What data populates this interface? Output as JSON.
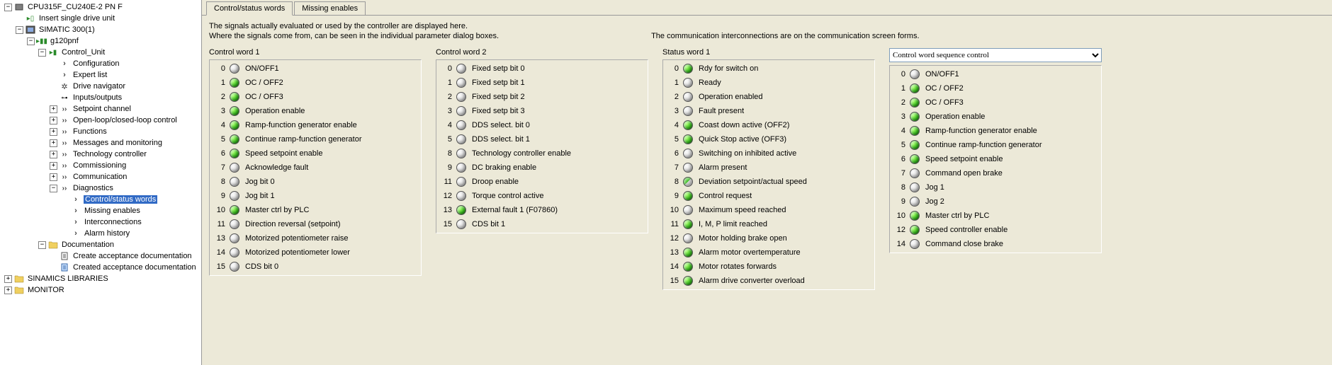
{
  "tree": [
    {
      "indent": 0,
      "exp": "-",
      "icon": "cpu",
      "label": "CPU315F_CU240E-2 PN F",
      "sel": false
    },
    {
      "indent": 1,
      "exp": "none",
      "icon": "insert",
      "label": "Insert single drive unit",
      "sel": false
    },
    {
      "indent": 1,
      "exp": "-",
      "icon": "device",
      "label": "SIMATIC 300(1)",
      "sel": false
    },
    {
      "indent": 2,
      "exp": "-",
      "icon": "drive",
      "label": "g120pnf",
      "sel": false
    },
    {
      "indent": 3,
      "exp": "-",
      "icon": "ctrl",
      "label": "Control_Unit",
      "sel": false
    },
    {
      "indent": 4,
      "exp": "none",
      "icon": "chev",
      "label": "Configuration",
      "sel": false
    },
    {
      "indent": 4,
      "exp": "none",
      "icon": "chev",
      "label": "Expert list",
      "sel": false
    },
    {
      "indent": 4,
      "exp": "none",
      "icon": "gear",
      "label": "Drive navigator",
      "sel": false
    },
    {
      "indent": 4,
      "exp": "none",
      "icon": "io",
      "label": "Inputs/outputs",
      "sel": false
    },
    {
      "indent": 4,
      "exp": "+",
      "icon": "dblchev",
      "label": "Setpoint channel",
      "sel": false
    },
    {
      "indent": 4,
      "exp": "+",
      "icon": "dblchev",
      "label": "Open-loop/closed-loop control",
      "sel": false
    },
    {
      "indent": 4,
      "exp": "+",
      "icon": "dblchev",
      "label": "Functions",
      "sel": false
    },
    {
      "indent": 4,
      "exp": "+",
      "icon": "dblchev",
      "label": "Messages and monitoring",
      "sel": false
    },
    {
      "indent": 4,
      "exp": "+",
      "icon": "dblchev",
      "label": "Technology controller",
      "sel": false
    },
    {
      "indent": 4,
      "exp": "+",
      "icon": "dblchev",
      "label": "Commissioning",
      "sel": false
    },
    {
      "indent": 4,
      "exp": "+",
      "icon": "dblchev",
      "label": "Communication",
      "sel": false
    },
    {
      "indent": 4,
      "exp": "-",
      "icon": "dblchev",
      "label": "Diagnostics",
      "sel": false
    },
    {
      "indent": 5,
      "exp": "none",
      "icon": "chev",
      "label": "Control/status words",
      "sel": true
    },
    {
      "indent": 5,
      "exp": "none",
      "icon": "chev",
      "label": "Missing enables",
      "sel": false
    },
    {
      "indent": 5,
      "exp": "none",
      "icon": "chev",
      "label": "Interconnections",
      "sel": false
    },
    {
      "indent": 5,
      "exp": "none",
      "icon": "chev",
      "label": "Alarm history",
      "sel": false
    },
    {
      "indent": 3,
      "exp": "-",
      "icon": "folder",
      "label": "Documentation",
      "sel": false
    },
    {
      "indent": 4,
      "exp": "none",
      "icon": "doc",
      "label": "Create acceptance documentation",
      "sel": false
    },
    {
      "indent": 4,
      "exp": "none",
      "icon": "doc2",
      "label": "Created acceptance documentation",
      "sel": false
    },
    {
      "indent": 0,
      "exp": "+",
      "icon": "folder",
      "label": "SINAMICS LIBRARIES",
      "sel": false
    },
    {
      "indent": 0,
      "exp": "+",
      "icon": "folder",
      "label": "MONITOR",
      "sel": false
    }
  ],
  "tabs": [
    {
      "label": "Control/status words",
      "active": true
    },
    {
      "label": "Missing enables",
      "active": false
    }
  ],
  "descr_line1": "The signals actually evaluated or used by the controller are displayed here.",
  "descr_line2": "Where the signals come from, can be seen in the individual parameter dialog boxes.",
  "descr_right": "The communication interconnections are on the communication screen forms.",
  "selector_value": "Control word sequence control",
  "columns": [
    {
      "header": "Control word 1",
      "bits": [
        {
          "n": 0,
          "s": "off",
          "t": "ON/OFF1"
        },
        {
          "n": 1,
          "s": "on",
          "t": "OC / OFF2"
        },
        {
          "n": 2,
          "s": "on",
          "t": "OC / OFF3"
        },
        {
          "n": 3,
          "s": "on",
          "t": "Operation enable"
        },
        {
          "n": 4,
          "s": "on",
          "t": "Ramp-function generator enable"
        },
        {
          "n": 5,
          "s": "on",
          "t": "Continue ramp-function generator"
        },
        {
          "n": 6,
          "s": "on",
          "t": "Speed setpoint enable"
        },
        {
          "n": 7,
          "s": "off",
          "t": "Acknowledge fault"
        },
        {
          "n": 8,
          "s": "off",
          "t": "Jog bit 0"
        },
        {
          "n": 9,
          "s": "off",
          "t": "Jog bit 1"
        },
        {
          "n": 10,
          "s": "on",
          "t": "Master ctrl by PLC"
        },
        {
          "n": 11,
          "s": "off",
          "t": "Direction reversal (setpoint)"
        },
        {
          "n": 13,
          "s": "off",
          "t": "Motorized potentiometer raise"
        },
        {
          "n": 14,
          "s": "off",
          "t": "Motorized potentiometer lower"
        },
        {
          "n": 15,
          "s": "off",
          "t": "CDS bit 0"
        }
      ]
    },
    {
      "header": "Control word 2",
      "bits": [
        {
          "n": 0,
          "s": "off",
          "t": "Fixed setp bit 0"
        },
        {
          "n": 1,
          "s": "off",
          "t": "Fixed setp bit 1"
        },
        {
          "n": 2,
          "s": "off",
          "t": "Fixed setp bit 2"
        },
        {
          "n": 3,
          "s": "off",
          "t": "Fixed setp bit 3"
        },
        {
          "n": 4,
          "s": "off",
          "t": "DDS select. bit 0"
        },
        {
          "n": 5,
          "s": "off",
          "t": "DDS select. bit 1"
        },
        {
          "n": 8,
          "s": "off",
          "t": "Technology controller enable"
        },
        {
          "n": 9,
          "s": "off",
          "t": "DC braking enable"
        },
        {
          "n": 11,
          "s": "off",
          "t": "Droop enable"
        },
        {
          "n": 12,
          "s": "off",
          "t": "Torque control active"
        },
        {
          "n": 13,
          "s": "on",
          "t": "External fault 1 (F07860)"
        },
        {
          "n": 15,
          "s": "off",
          "t": "CDS bit 1"
        }
      ]
    },
    {
      "header": "Status word 1",
      "bits": [
        {
          "n": 0,
          "s": "on",
          "t": "Rdy for switch on"
        },
        {
          "n": 1,
          "s": "off",
          "t": "Ready"
        },
        {
          "n": 2,
          "s": "off",
          "t": "Operation enabled"
        },
        {
          "n": 3,
          "s": "off",
          "t": "Fault present"
        },
        {
          "n": 4,
          "s": "on",
          "t": "Coast down active (OFF2)"
        },
        {
          "n": 5,
          "s": "on",
          "t": "Quick Stop active (OFF3)"
        },
        {
          "n": 6,
          "s": "off",
          "t": "Switching on inhibited active"
        },
        {
          "n": 7,
          "s": "off",
          "t": "Alarm present"
        },
        {
          "n": 8,
          "s": "half",
          "t": "Deviation setpoint/actual speed"
        },
        {
          "n": 9,
          "s": "on",
          "t": "Control request"
        },
        {
          "n": 10,
          "s": "off",
          "t": "Maximum speed reached"
        },
        {
          "n": 11,
          "s": "on",
          "t": "I, M, P limit reached"
        },
        {
          "n": 12,
          "s": "off",
          "t": "Motor holding brake open"
        },
        {
          "n": 13,
          "s": "on",
          "t": "Alarm motor overtemperature"
        },
        {
          "n": 14,
          "s": "on",
          "t": "Motor rotates forwards"
        },
        {
          "n": 15,
          "s": "on",
          "t": "Alarm drive converter overload"
        }
      ]
    },
    {
      "header": "",
      "selector": true,
      "bits": [
        {
          "n": 0,
          "s": "off",
          "t": "ON/OFF1"
        },
        {
          "n": 1,
          "s": "on",
          "t": "OC / OFF2"
        },
        {
          "n": 2,
          "s": "on",
          "t": "OC / OFF3"
        },
        {
          "n": 3,
          "s": "on",
          "t": "Operation enable"
        },
        {
          "n": 4,
          "s": "on",
          "t": "Ramp-function generator enable"
        },
        {
          "n": 5,
          "s": "on",
          "t": "Continue ramp-function generator"
        },
        {
          "n": 6,
          "s": "on",
          "t": "Speed setpoint enable"
        },
        {
          "n": 7,
          "s": "off",
          "t": "Command open brake"
        },
        {
          "n": 8,
          "s": "off",
          "t": "Jog 1"
        },
        {
          "n": 9,
          "s": "off",
          "t": "Jog 2"
        },
        {
          "n": 10,
          "s": "on",
          "t": "Master ctrl by PLC"
        },
        {
          "n": 12,
          "s": "on",
          "t": "Speed controller enable"
        },
        {
          "n": 14,
          "s": "off",
          "t": "Command close brake"
        }
      ]
    }
  ]
}
